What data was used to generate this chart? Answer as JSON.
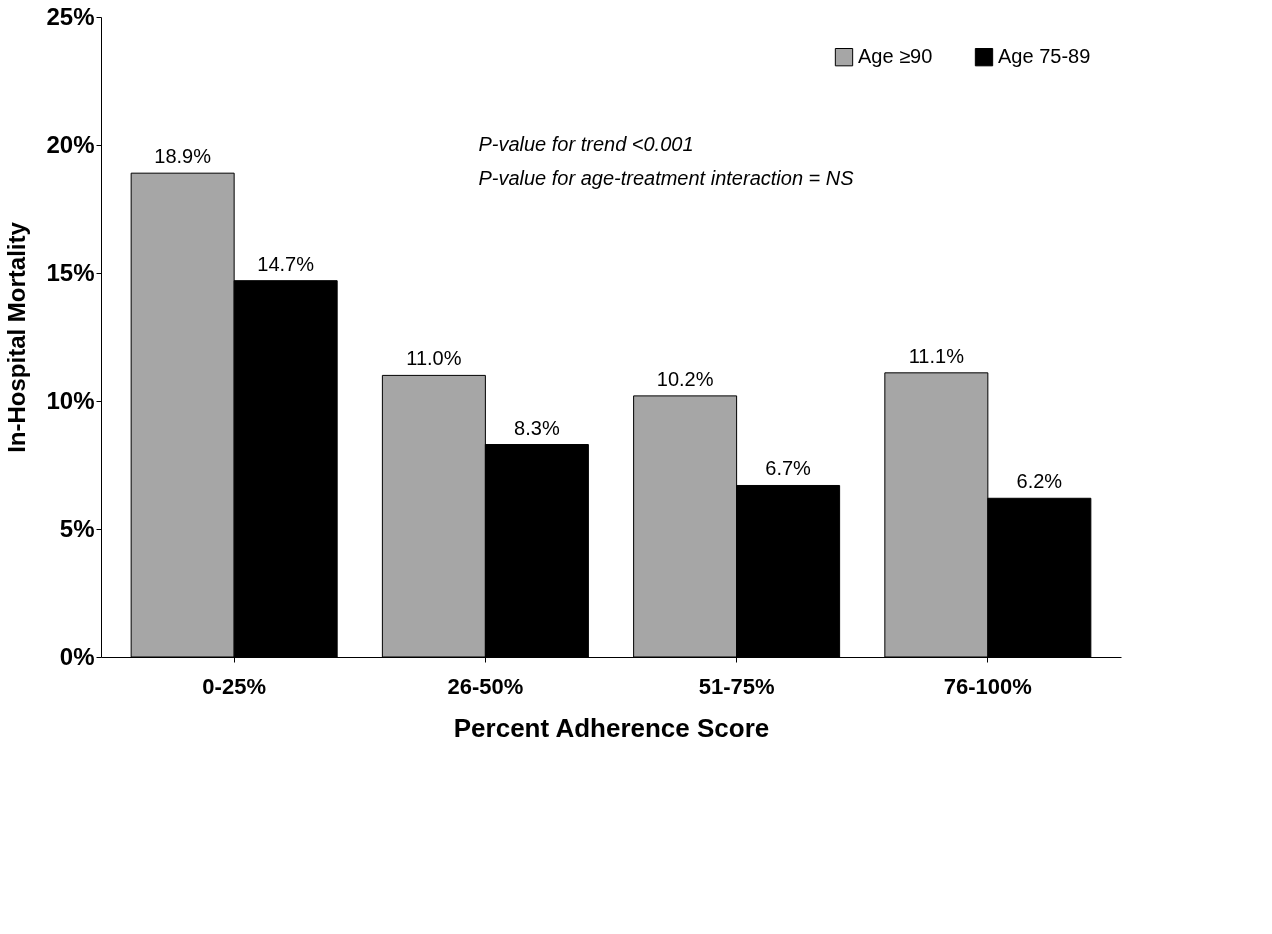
{
  "chart_data": {
    "type": "bar",
    "xlabel": "Percent Adherence Score",
    "ylabel": "In-Hospital Mortality",
    "categories": [
      "0-25%",
      "26-50%",
      "51-75%",
      "76-100%"
    ],
    "series": [
      {
        "name": "Age ≥90",
        "color": "#a6a6a6",
        "values": [
          18.9,
          11.0,
          10.2,
          11.1
        ],
        "value_labels": [
          "18.9%",
          "11.0%",
          "10.2%",
          "11.1%"
        ]
      },
      {
        "name": "Age 75-89",
        "color": "#000000",
        "values": [
          14.7,
          8.3,
          6.7,
          6.2
        ],
        "value_labels": [
          "14.7%",
          "8.3%",
          "6.7%",
          "6.2%"
        ]
      }
    ],
    "ylim": [
      0,
      25
    ],
    "yticks": [
      {
        "value": 0,
        "label": "0%"
      },
      {
        "value": 5,
        "label": "5%"
      },
      {
        "value": 10,
        "label": "10%"
      },
      {
        "value": 15,
        "label": "15%"
      },
      {
        "value": 20,
        "label": "20%"
      },
      {
        "value": 25,
        "label": "25%"
      }
    ],
    "annotations": [
      "P-value for trend <0.001",
      "P-value for age-treatment interaction = NS"
    ],
    "legend": "top right",
    "grid": false
  }
}
